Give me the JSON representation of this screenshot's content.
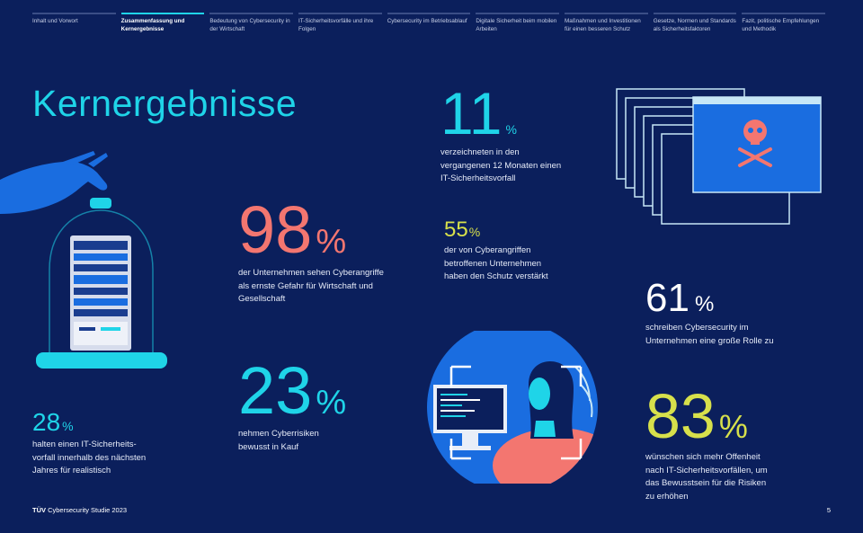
{
  "nav": [
    {
      "label": "Inhalt und Vorwort",
      "active": false
    },
    {
      "label": "Zusammenfassung und Kernergebnisse",
      "active": true
    },
    {
      "label": "Bedeutung von Cybersecurity in der Wirtschaft",
      "active": false
    },
    {
      "label": "IT-Sicherheitsvorfälle und ihre Folgen",
      "active": false
    },
    {
      "label": "Cybersecurity im Betriebsablauf",
      "active": false
    },
    {
      "label": "Digitale Sicherheit beim mobilen Arbeiten",
      "active": false
    },
    {
      "label": "Maßnahmen und Investitionen für einen besseren Schutz",
      "active": false
    },
    {
      "label": "Gesetze, Normen und Standards als Sicherheitsfaktoren",
      "active": false
    },
    {
      "label": "Fazit, politische Empfehlungen und Methodik",
      "active": false
    }
  ],
  "title": "Kernergebnisse",
  "stats": {
    "s98": {
      "value": "98",
      "unit": "%",
      "text": "der Unternehmen sehen Cyberangriffe als ernste Gefahr für Wirtschaft und Gesellschaft"
    },
    "s23": {
      "value": "23",
      "unit": "%",
      "text": "nehmen Cyberrisiken bewusst in Kauf"
    },
    "s11": {
      "value": "11",
      "unit": "%",
      "text": "verzeichneten in den vergangenen 12 Monaten einen IT-Sicherheitsvorfall"
    },
    "s55": {
      "value": "55",
      "unit": "%",
      "text": "der von Cyberangriffen betroffenen Unternehmen haben den Schutz verstärkt"
    },
    "s61": {
      "value": "61",
      "unit": "%",
      "text": "schreiben Cybersecurity im Unternehmen eine große Rolle zu"
    },
    "s83": {
      "value": "83",
      "unit": "%",
      "text": "wünschen sich mehr Offenheit nach IT-Sicherheitsvorfällen, um das Bewusstsein für die Risiken zu erhöhen"
    },
    "s28": {
      "value": "28",
      "unit": "%",
      "text": "halten einen IT-Sicherheits-vorfall innerhalb des nächsten Jahres für realistisch"
    }
  },
  "footer": {
    "brand": "TÜV",
    "study": "Cybersecurity Studie 2023",
    "page": "5"
  },
  "colors": {
    "background": "#0b1f5c",
    "cyan": "#1fd4e8",
    "coral": "#f37670",
    "yellow": "#d7e04b"
  }
}
